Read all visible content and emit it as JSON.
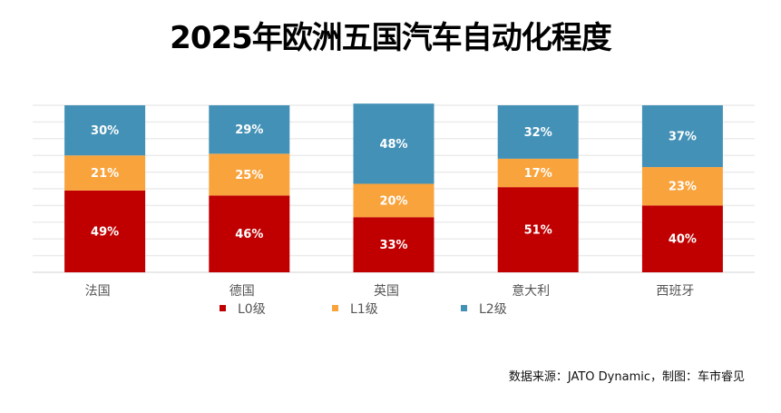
{
  "chart_data": {
    "type": "bar",
    "stacked": true,
    "title": "2025年欧洲五国汽车自动化程度",
    "categories": [
      "法国",
      "德国",
      "英国",
      "意大利",
      "西班牙"
    ],
    "series": [
      {
        "name": "L0级",
        "color": "#C00000",
        "values": [
          49,
          46,
          33,
          51,
          40
        ]
      },
      {
        "name": "L1级",
        "color": "#F9A33C",
        "values": [
          21,
          25,
          20,
          17,
          23
        ]
      },
      {
        "name": "L2级",
        "color": "#4391B6",
        "values": [
          30,
          29,
          48,
          32,
          37
        ]
      }
    ],
    "value_suffix": "%",
    "ylim": [
      0,
      100
    ],
    "grid": true,
    "legend": "bottom",
    "xlabel": "",
    "ylabel": ""
  },
  "source": "数据来源：JATO Dynamic，制图：车市睿见"
}
